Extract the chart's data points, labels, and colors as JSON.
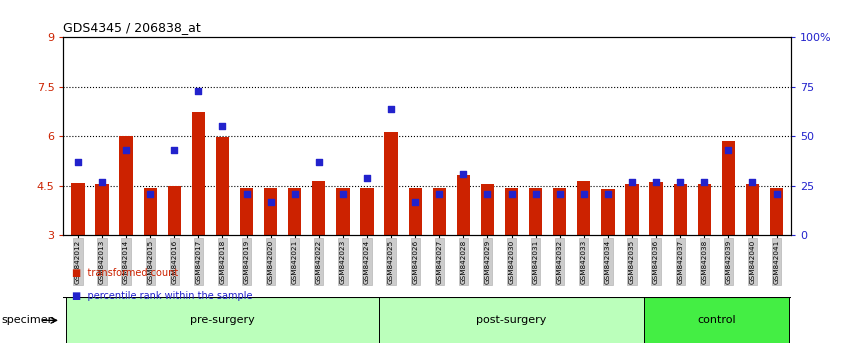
{
  "title": "GDS4345 / 206838_at",
  "categories": [
    "GSM842012",
    "GSM842013",
    "GSM842014",
    "GSM842015",
    "GSM842016",
    "GSM842017",
    "GSM842018",
    "GSM842019",
    "GSM842020",
    "GSM842021",
    "GSM842022",
    "GSM842023",
    "GSM842024",
    "GSM842025",
    "GSM842026",
    "GSM842027",
    "GSM842028",
    "GSM842029",
    "GSM842030",
    "GSM842031",
    "GSM842032",
    "GSM842033",
    "GSM842034",
    "GSM842035",
    "GSM842036",
    "GSM842037",
    "GSM842038",
    "GSM842039",
    "GSM842040",
    "GSM842041"
  ],
  "bar_values": [
    4.6,
    4.55,
    6.02,
    4.43,
    4.5,
    6.75,
    5.98,
    4.45,
    4.45,
    4.45,
    4.65,
    4.45,
    4.45,
    6.12,
    4.45,
    4.45,
    4.82,
    4.55,
    4.45,
    4.45,
    4.45,
    4.65,
    4.4,
    4.55,
    4.62,
    4.55,
    4.55,
    5.85,
    4.55,
    4.45
  ],
  "dot_pct": [
    37,
    27,
    43,
    21,
    43,
    73,
    55,
    21,
    17,
    21,
    37,
    21,
    29,
    64,
    17,
    21,
    31,
    21,
    21,
    21,
    21,
    21,
    21,
    27,
    27,
    27,
    27,
    43,
    27,
    21
  ],
  "bar_color": "#cc2200",
  "dot_color": "#2222cc",
  "ymin": 3,
  "ymax": 9,
  "yticks_left": [
    3,
    4.5,
    6,
    7.5,
    9
  ],
  "ytick_labels_left": [
    "3",
    "4.5",
    "6",
    "7.5",
    "9"
  ],
  "hlines": [
    4.5,
    6.0,
    7.5
  ],
  "right_yticks": [
    0,
    25,
    50,
    75,
    100
  ],
  "right_yticklabels": [
    "0",
    "25",
    "50",
    "75",
    "100%"
  ],
  "group_spans": [
    {
      "start": 0,
      "end": 12,
      "label": "pre-surgery",
      "color": "#bbffbb"
    },
    {
      "start": 13,
      "end": 23,
      "label": "post-surgery",
      "color": "#bbffbb"
    },
    {
      "start": 24,
      "end": 29,
      "label": "control",
      "color": "#44ee44"
    }
  ],
  "bar_color_hex": "#cc2200",
  "dot_color_hex": "#2222cc",
  "left_axis_color": "#cc2200",
  "right_axis_color": "#2222cc",
  "bg_color": "#ffffff",
  "tick_label_bg": "#cccccc",
  "tick_label_ec": "#aaaaaa",
  "legend": [
    {
      "label": "transformed count",
      "color": "#cc2200"
    },
    {
      "label": "percentile rank within the sample",
      "color": "#2222cc"
    }
  ],
  "specimen_label": "specimen"
}
